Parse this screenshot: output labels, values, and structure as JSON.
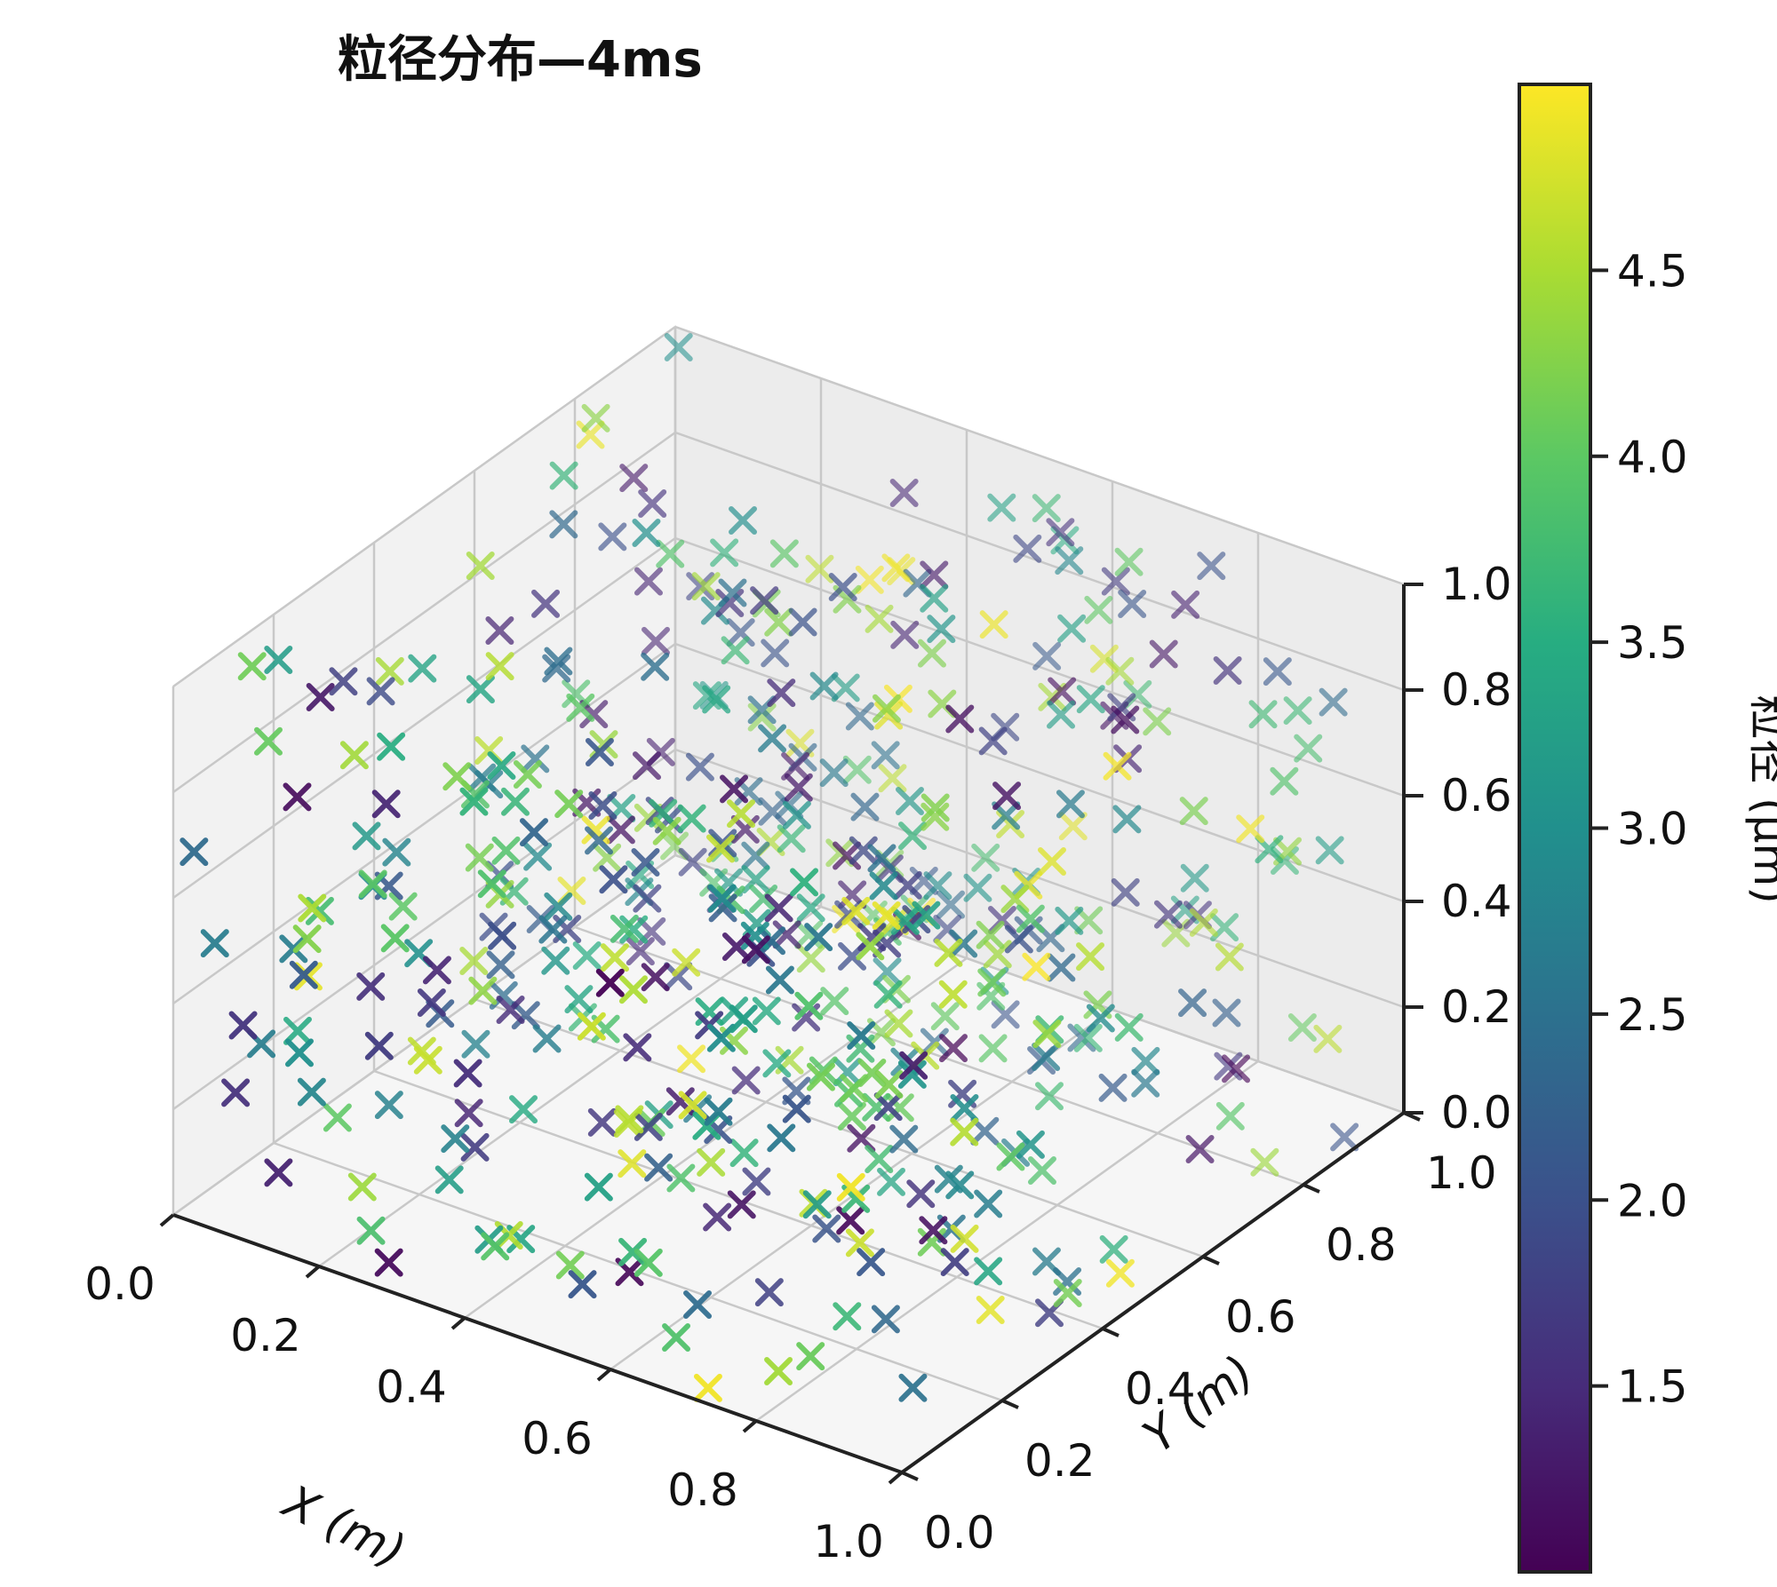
{
  "chart_data": {
    "type": "scatter",
    "projection": "3d",
    "title": "粒径分布—4ms",
    "xlabel": "X (m)",
    "ylabel": "Y (m)",
    "zlabel": "",
    "xlim": [
      0,
      1
    ],
    "ylim": [
      0,
      1
    ],
    "zlim": [
      0,
      1
    ],
    "x_ticks": [
      "0.0",
      "0.2",
      "0.4",
      "0.6",
      "0.8",
      "1.0"
    ],
    "y_ticks": [
      "0.0",
      "0.2",
      "0.4",
      "0.6",
      "0.8",
      "1.0"
    ],
    "z_ticks": [
      "0.0",
      "0.2",
      "0.4",
      "0.6",
      "0.8",
      "1.0"
    ],
    "grid": true,
    "marker": "x",
    "colormap": "viridis",
    "colorbar": {
      "label": "粒径 (μm)",
      "range": [
        1.0,
        5.0
      ],
      "ticks": [
        "1.5",
        "2.0",
        "2.5",
        "3.0",
        "3.5",
        "4.0",
        "4.5"
      ]
    },
    "series": [
      {
        "points_note_removed": true,
        "x": [],
        "y": [],
        "z": [],
        "size": []
      }
    ],
    "n_points": 500
  }
}
